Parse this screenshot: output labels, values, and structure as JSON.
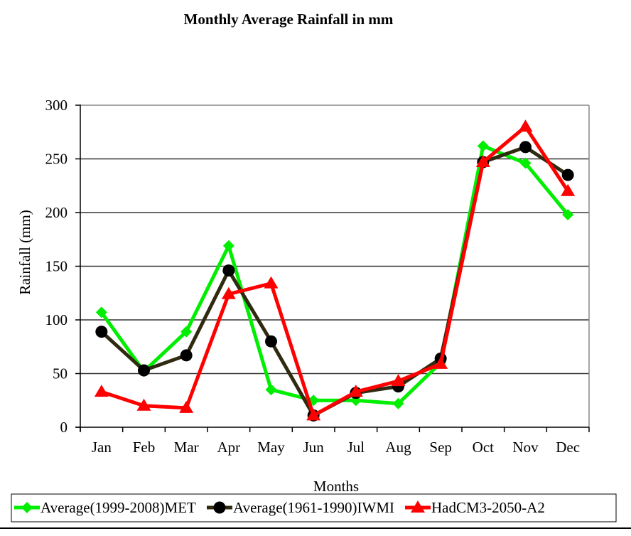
{
  "chart_data": {
    "type": "line",
    "title": "Monthly Average Rainfall in mm",
    "xlabel": "Months",
    "ylabel": "Rainfall (mm)",
    "categories": [
      "Jan",
      "Feb",
      "Mar",
      "Apr",
      "May",
      "Jun",
      "Jul",
      "Aug",
      "Sep",
      "Oct",
      "Nov",
      "Dec"
    ],
    "ylim": [
      0,
      300
    ],
    "yticks": [
      0,
      50,
      100,
      150,
      200,
      250,
      300
    ],
    "grid": true,
    "legend_position": "bottom",
    "series": [
      {
        "name": "Average(1999-2008)MET",
        "color": "#00ee00",
        "marker": "diamond",
        "values": [
          107,
          52,
          89,
          169,
          35,
          25,
          25,
          22,
          60,
          262,
          246,
          198
        ]
      },
      {
        "name": "Average(1961-1990)IWMI",
        "color": "#2f2a10",
        "marker_color": "#000000",
        "marker": "circle",
        "values": [
          89,
          53,
          67,
          146,
          80,
          11,
          32,
          38,
          64,
          247,
          261,
          235
        ]
      },
      {
        "name": "HadCM3-2050-A2",
        "color": "#ff0000",
        "marker": "triangle",
        "values": [
          33,
          20,
          18,
          124,
          134,
          11,
          33,
          43,
          59,
          247,
          280,
          220
        ]
      }
    ]
  }
}
